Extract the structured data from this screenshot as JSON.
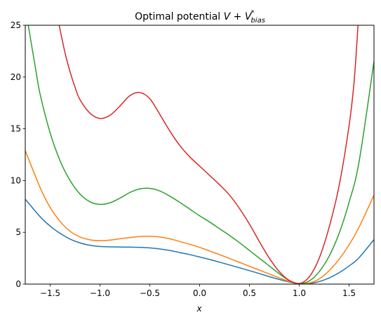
{
  "chart_data": {
    "type": "line",
    "title": {
      "prefix": "Optimal potential ",
      "V": "V",
      "plus": " + ",
      "V2": "V",
      "sup": "*",
      "sub": "bias"
    },
    "xlabel": "x",
    "ylabel": "",
    "xlim": [
      -1.75,
      1.75
    ],
    "ylim": [
      0,
      25
    ],
    "xticks": [
      -1.5,
      -1.0,
      -0.5,
      0.0,
      0.5,
      1.0,
      1.5
    ],
    "xtick_labels": [
      "−1.5",
      "−1.0",
      "−0.5",
      "0.0",
      "0.5",
      "1.0",
      "1.5"
    ],
    "yticks": [
      0,
      5,
      10,
      15,
      20,
      25
    ],
    "ytick_labels": [
      "0",
      "5",
      "10",
      "15",
      "20",
      "25"
    ],
    "grid": false,
    "series": [
      {
        "color": "#1f77b4",
        "x": [
          -1.75,
          -1.6,
          -1.5,
          -1.4,
          -1.3,
          -1.2,
          -1.1,
          -1.0,
          -0.9,
          -0.8,
          -0.7,
          -0.6,
          -0.5,
          -0.4,
          -0.3,
          -0.2,
          -0.1,
          0.0,
          0.1,
          0.2,
          0.3,
          0.4,
          0.5,
          0.6,
          0.7,
          0.8,
          0.9,
          1.0,
          1.1,
          1.2,
          1.3,
          1.4,
          1.5,
          1.6,
          1.75
        ],
        "y": [
          8.2,
          6.5,
          5.6,
          4.9,
          4.35,
          3.98,
          3.75,
          3.63,
          3.6,
          3.58,
          3.57,
          3.55,
          3.5,
          3.4,
          3.25,
          3.05,
          2.85,
          2.62,
          2.38,
          2.12,
          1.85,
          1.58,
          1.3,
          1.02,
          0.72,
          0.45,
          0.2,
          0.05,
          0.05,
          0.25,
          0.6,
          1.1,
          1.75,
          2.55,
          4.3
        ]
      },
      {
        "color": "#ff7f0e",
        "x": [
          -1.75,
          -1.6,
          -1.5,
          -1.4,
          -1.3,
          -1.2,
          -1.1,
          -1.0,
          -0.9,
          -0.8,
          -0.7,
          -0.6,
          -0.5,
          -0.4,
          -0.3,
          -0.2,
          -0.1,
          0.0,
          0.1,
          0.2,
          0.3,
          0.4,
          0.5,
          0.6,
          0.7,
          0.8,
          0.9,
          1.0,
          1.1,
          1.2,
          1.3,
          1.4,
          1.5,
          1.6,
          1.75
        ],
        "y": [
          12.9,
          9.3,
          7.4,
          6.05,
          5.1,
          4.55,
          4.28,
          4.2,
          4.25,
          4.38,
          4.5,
          4.6,
          4.62,
          4.55,
          4.38,
          4.12,
          3.85,
          3.55,
          3.2,
          2.85,
          2.48,
          2.1,
          1.72,
          1.35,
          0.98,
          0.6,
          0.25,
          0.05,
          0.1,
          0.5,
          1.3,
          2.4,
          3.8,
          5.5,
          8.6
        ]
      },
      {
        "color": "#2ca02c",
        "x": [
          -1.72,
          -1.65,
          -1.6,
          -1.5,
          -1.4,
          -1.3,
          -1.2,
          -1.1,
          -1.0,
          -0.9,
          -0.8,
          -0.7,
          -0.6,
          -0.5,
          -0.4,
          -0.3,
          -0.2,
          -0.1,
          0.0,
          0.1,
          0.2,
          0.3,
          0.4,
          0.5,
          0.6,
          0.7,
          0.8,
          0.9,
          1.0,
          1.1,
          1.2,
          1.3,
          1.4,
          1.5,
          1.6,
          1.75
        ],
        "y": [
          25,
          21.0,
          18.3,
          14.6,
          11.9,
          10.0,
          8.7,
          7.95,
          7.7,
          7.85,
          8.3,
          8.85,
          9.2,
          9.25,
          9.0,
          8.5,
          7.9,
          7.25,
          6.6,
          6.0,
          5.35,
          4.7,
          4.0,
          3.25,
          2.5,
          1.75,
          1.0,
          0.35,
          0.05,
          0.3,
          1.2,
          2.7,
          4.9,
          7.9,
          11.8,
          21.5
        ]
      },
      {
        "color": "#d62728",
        "x": [
          -1.41,
          -1.35,
          -1.3,
          -1.25,
          -1.2,
          -1.1,
          -1.0,
          -0.9,
          -0.8,
          -0.7,
          -0.6,
          -0.5,
          -0.4,
          -0.3,
          -0.2,
          -0.1,
          0.0,
          0.1,
          0.2,
          0.3,
          0.4,
          0.5,
          0.6,
          0.7,
          0.8,
          0.9,
          1.0,
          1.1,
          1.2,
          1.3,
          1.4,
          1.5,
          1.55,
          1.59
        ],
        "y": [
          25,
          22.3,
          20.5,
          19.0,
          17.8,
          16.5,
          16.0,
          16.3,
          17.2,
          18.2,
          18.5,
          17.9,
          16.4,
          14.8,
          13.4,
          12.3,
          11.4,
          10.5,
          9.6,
          8.6,
          7.3,
          5.8,
          4.1,
          2.5,
          1.2,
          0.35,
          0.05,
          0.7,
          2.5,
          5.5,
          9.5,
          15.3,
          19.5,
          25
        ]
      }
    ]
  }
}
